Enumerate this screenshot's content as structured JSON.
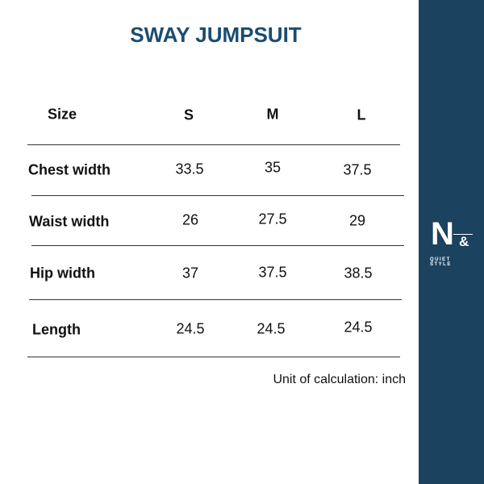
{
  "title": "SWAY JUMPSUIT",
  "table": {
    "headers": [
      "Size",
      "S",
      "M",
      "L"
    ],
    "rows": [
      {
        "label": "Chest width",
        "values": [
          "33.5",
          "35",
          "37.5"
        ]
      },
      {
        "label": "Waist width",
        "values": [
          "26",
          "27.5",
          "29"
        ]
      },
      {
        "label": "Hip width",
        "values": [
          "37",
          "37.5",
          "38.5"
        ]
      },
      {
        "label": "Length",
        "values": [
          "24.5",
          "24.5",
          "24.5"
        ]
      }
    ]
  },
  "unit_note": "Unit of calculation: inch",
  "brand": {
    "logo_text": "N&",
    "tagline": "QUIET STYLE",
    "color": "#1b4360"
  }
}
